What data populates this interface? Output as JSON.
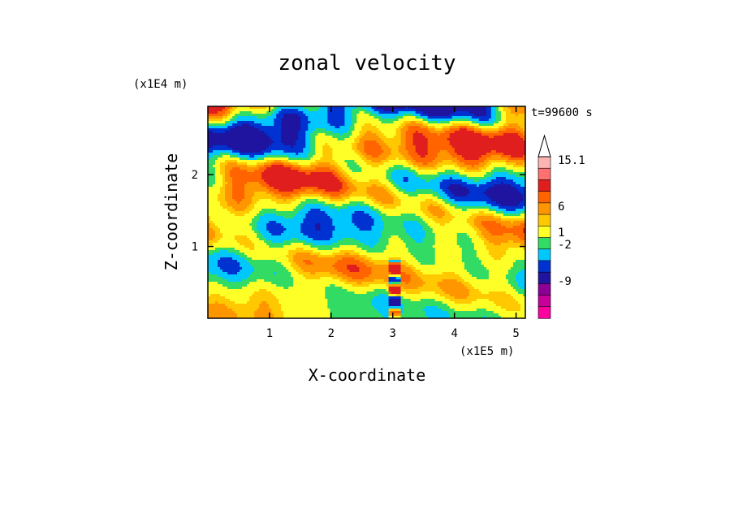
{
  "chart_data": {
    "type": "heatmap",
    "title": "zonal velocity",
    "xlabel": "X-coordinate",
    "ylabel": "Z-coordinate",
    "x_unit": "(x1E5 m)",
    "y_unit": "(x1E4 m)",
    "time_label": "t=99600 s",
    "xlim": [
      0,
      5.15
    ],
    "ylim": [
      0,
      2.95
    ],
    "x_ticks": [
      "1",
      "2",
      "3",
      "4",
      "5"
    ],
    "y_ticks": [
      "1",
      "2"
    ],
    "x_tick_values": [
      1,
      2,
      3,
      4,
      5
    ],
    "y_tick_values": [
      1,
      2
    ],
    "colorbar": {
      "labels": [
        "15.1",
        "6",
        "1",
        "-2",
        "-9"
      ],
      "label_values": [
        15.1,
        6,
        1,
        -2,
        -9
      ],
      "levels": [
        {
          "color": "#ff00a0"
        },
        {
          "color": "#c8009a"
        },
        {
          "color": "#8c0096"
        },
        {
          "color": "#1e14a0"
        },
        {
          "color": "#0032d2"
        },
        {
          "color": "#00c8ff"
        },
        {
          "color": "#32dc64"
        },
        {
          "color": "#ffff28"
        },
        {
          "color": "#ffc800"
        },
        {
          "color": "#ff9600"
        },
        {
          "color": "#ff6400"
        },
        {
          "color": "#e11e1e"
        },
        {
          "color": "#ff7070"
        },
        {
          "color": "#ffb4b4"
        }
      ],
      "overflow_arrow": "up"
    },
    "grid": false
  }
}
